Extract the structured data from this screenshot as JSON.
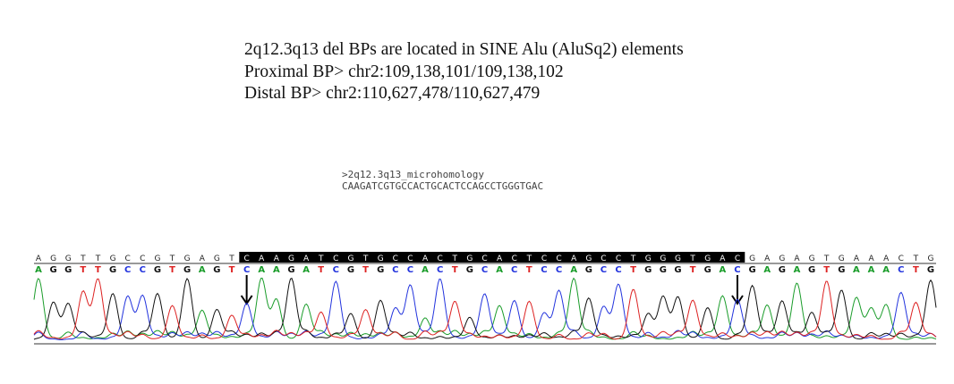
{
  "header": {
    "line1": "2q12.3q13 del BPs are located in SINE Alu (AluSq2) elements",
    "line2": "Proximal BP> chr2:109,138,101/109,138,102",
    "line3": "Distal BP> chr2:110,627,478/110,627,479"
  },
  "fasta": {
    "header": ">2q12.3q13_microhomology",
    "sequence": "CAAGATCGTGCCACTGCACTCCAGCCTGGGTGAC"
  },
  "chromatogram": {
    "reference_sequence": "AGGTTGCCGTGAGTCAAGATCGTGCCACTGCACTCCAGCCTGGGTGACGAGAGTGAAACTG",
    "called_sequence": "AGGTTGCCGTGAGTCAAGATCGTGCCACTGCACTCCAGCCTGGGTGACGAGAGTGAAACTG",
    "highlight_start": 14,
    "highlight_end": 47,
    "arrow_indices": [
      14,
      47
    ],
    "base_colors": {
      "A": "#1a9c2a",
      "C": "#2233dd",
      "G": "#111111",
      "T": "#dd2222"
    },
    "highlight_color": "#000000"
  }
}
